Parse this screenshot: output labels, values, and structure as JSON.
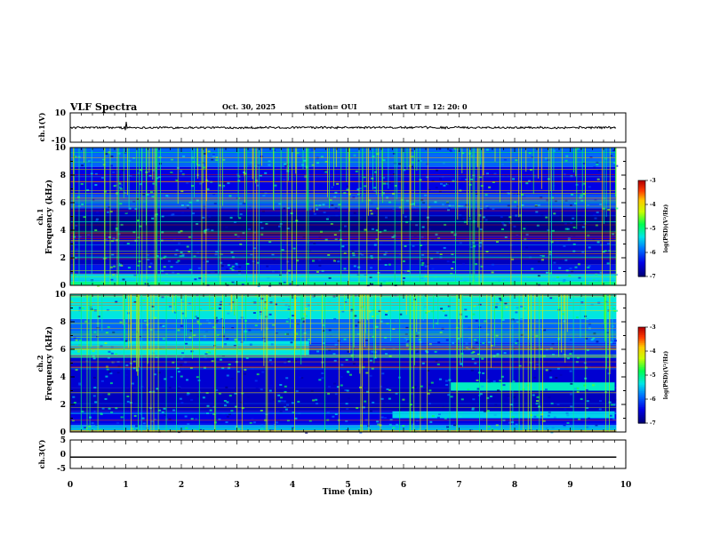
{
  "header": {
    "title": "VLF Spectra",
    "date": "Oct. 30, 2025",
    "station": "station= OUI",
    "start": "start  UT =   12: 20: 0"
  },
  "colors": {
    "low": "#000080",
    "mid": "#00ff00",
    "high": "#ff0000",
    "background": "#ffffff",
    "trace": "#000000"
  },
  "chart_data": [
    {
      "type": "line",
      "name": "ch1-waveform",
      "ylabel": "ch.1(V)",
      "ylim": [
        -10,
        10
      ],
      "yticks": [
        "10",
        "-10"
      ],
      "level": 0,
      "description_series": "narrow-band noise around 0 V with brief spikes near t=1 min"
    },
    {
      "type": "heatmap",
      "name": "ch1-spectrogram",
      "ylabel": "ch.1\nFrequency (kHz)",
      "ylim": [
        0,
        10
      ],
      "yticks": [
        "0",
        "2",
        "4",
        "6",
        "8",
        "10"
      ],
      "colorbar": {
        "label": "log(PSD)(V²/Hz)",
        "ticks": [
          "-3",
          "-4",
          "-5",
          "-6",
          "-7"
        ],
        "range": [
          -7,
          -3
        ]
      },
      "bands": [
        {
          "f_low": 0.0,
          "f_high": 0.3,
          "level": -5.0
        },
        {
          "f_low": 0.3,
          "f_high": 0.8,
          "level": -5.4
        },
        {
          "f_low": 0.8,
          "f_high": 1.5,
          "level": -6.3
        },
        {
          "f_low": 1.5,
          "f_high": 2.5,
          "level": -6.6
        },
        {
          "f_low": 2.5,
          "f_high": 3.6,
          "level": -6.5
        },
        {
          "f_low": 3.6,
          "f_high": 5.0,
          "level": -6.85
        },
        {
          "f_low": 5.0,
          "f_high": 5.6,
          "level": -6.6
        },
        {
          "f_low": 5.6,
          "f_high": 6.6,
          "level": -6.0
        },
        {
          "f_low": 6.6,
          "f_high": 8.6,
          "level": -6.4
        },
        {
          "f_low": 8.6,
          "f_high": 10.0,
          "level": -5.9
        }
      ]
    },
    {
      "type": "heatmap",
      "name": "ch2-spectrogram",
      "ylabel": "ch.2\nFrequency (kHz)",
      "ylim": [
        0,
        10
      ],
      "yticks": [
        "0",
        "2",
        "4",
        "6",
        "8",
        "10"
      ],
      "colorbar": {
        "label": "log(PSD)(V²/Hz)",
        "ticks": [
          "-3",
          "-4",
          "-5",
          "-6",
          "-7"
        ],
        "range": [
          -7,
          -3
        ]
      },
      "bands": [
        {
          "f_low": 0.0,
          "f_high": 0.5,
          "level": -5.6
        },
        {
          "f_low": 0.5,
          "f_high": 1.5,
          "level": -6.4
        },
        {
          "f_low": 1.5,
          "f_high": 3.2,
          "level": -6.6
        },
        {
          "f_low": 3.2,
          "f_high": 5.5,
          "level": -6.5
        },
        {
          "f_low": 5.5,
          "f_high": 6.5,
          "level": -6.2
        },
        {
          "f_low": 6.5,
          "f_high": 8.2,
          "level": -5.9
        },
        {
          "f_low": 8.2,
          "f_high": 10.0,
          "level": -5.3
        }
      ],
      "patches": [
        {
          "t0": 0,
          "t1": 4.3,
          "f_low": 5.6,
          "f_high": 6.6,
          "level": -5.3
        },
        {
          "t0": 6.85,
          "t1": 9.8,
          "f_low": 3.0,
          "f_high": 3.6,
          "level": -5.2
        },
        {
          "t0": 5.8,
          "t1": 9.8,
          "f_low": 1.0,
          "f_high": 1.5,
          "level": -5.4
        }
      ]
    },
    {
      "type": "line",
      "name": "ch3-waveform",
      "ylabel": "ch.3(V)",
      "ylim": [
        -5,
        5
      ],
      "yticks": [
        "5",
        "0",
        "-5"
      ],
      "level": -1.0
    }
  ],
  "axes": {
    "xlabel": "Time (min)",
    "xlim": [
      0,
      10
    ],
    "data_end": 9.83,
    "xticks": [
      "0",
      "1",
      "2",
      "3",
      "4",
      "5",
      "6",
      "7",
      "8",
      "9",
      "10"
    ]
  }
}
